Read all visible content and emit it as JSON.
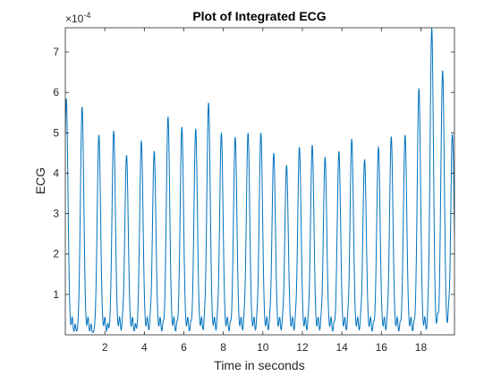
{
  "chart_data": {
    "type": "line",
    "title": "Plot of Integrated ECG",
    "xlabel": "Time in seconds",
    "ylabel": "ECG",
    "xlim": [
      0,
      19.7
    ],
    "ylim": [
      0,
      7.6
    ],
    "y_exponent_label": "×10",
    "y_exponent_power": "-4",
    "xticks": [
      2,
      4,
      6,
      8,
      10,
      12,
      14,
      16,
      18
    ],
    "yticks": [
      1,
      2,
      3,
      4,
      5,
      6,
      7
    ],
    "grid": false,
    "line_color": "#0072bd",
    "peaks": [
      {
        "t": 0.05,
        "v": 5.8
      },
      {
        "t": 0.85,
        "v": 5.6
      },
      {
        "t": 1.7,
        "v": 4.9
      },
      {
        "t": 2.45,
        "v": 5.0
      },
      {
        "t": 3.1,
        "v": 4.4
      },
      {
        "t": 3.85,
        "v": 4.75
      },
      {
        "t": 4.5,
        "v": 4.5
      },
      {
        "t": 5.2,
        "v": 5.35
      },
      {
        "t": 5.9,
        "v": 5.1
      },
      {
        "t": 6.6,
        "v": 5.05
      },
      {
        "t": 7.25,
        "v": 5.7
      },
      {
        "t": 7.9,
        "v": 4.95
      },
      {
        "t": 8.6,
        "v": 4.85
      },
      {
        "t": 9.25,
        "v": 4.95
      },
      {
        "t": 9.9,
        "v": 4.95
      },
      {
        "t": 10.55,
        "v": 4.45
      },
      {
        "t": 11.2,
        "v": 4.15
      },
      {
        "t": 11.85,
        "v": 4.6
      },
      {
        "t": 12.5,
        "v": 4.65
      },
      {
        "t": 13.15,
        "v": 4.35
      },
      {
        "t": 13.85,
        "v": 4.5
      },
      {
        "t": 14.5,
        "v": 4.8
      },
      {
        "t": 15.15,
        "v": 4.3
      },
      {
        "t": 15.85,
        "v": 4.6
      },
      {
        "t": 16.5,
        "v": 4.85
      },
      {
        "t": 17.2,
        "v": 4.9
      },
      {
        "t": 17.9,
        "v": 6.05
      },
      {
        "t": 18.55,
        "v": 7.55
      },
      {
        "t": 19.1,
        "v": 6.5
      },
      {
        "t": 19.6,
        "v": 4.85
      }
    ]
  }
}
